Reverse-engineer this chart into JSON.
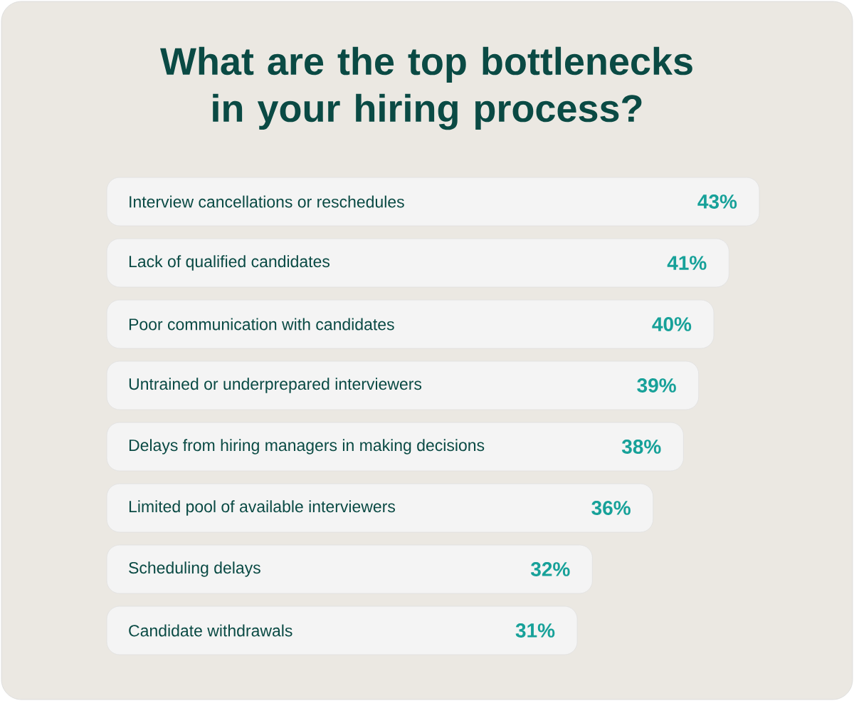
{
  "chart_data": {
    "type": "bar",
    "orientation": "horizontal",
    "title": "What are the top bottlenecks in your hiring process?",
    "categories": [
      "Interview cancellations or reschedules",
      "Lack of qualified candidates",
      "Poor communication with candidates",
      "Untrained or underprepared interviewers",
      "Delays from hiring managers in making decisions",
      "Limited pool of available interviewers",
      "Scheduling delays",
      "Candidate withdrawals"
    ],
    "values": [
      43,
      41,
      40,
      39,
      38,
      36,
      32,
      31
    ],
    "value_labels": [
      "43%",
      "41%",
      "40%",
      "39%",
      "38%",
      "36%",
      "32%",
      "31%"
    ],
    "color": "#f4f4f4"
  }
}
